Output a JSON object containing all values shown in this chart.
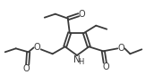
{
  "bg_color": "#ffffff",
  "line_color": "#3a3a3a",
  "line_width": 1.3,
  "font_size": 7.0,
  "figsize": [
    1.72,
    0.93
  ],
  "dpi": 100,
  "xlim": [
    0,
    172
  ],
  "ylim": [
    0,
    93
  ]
}
